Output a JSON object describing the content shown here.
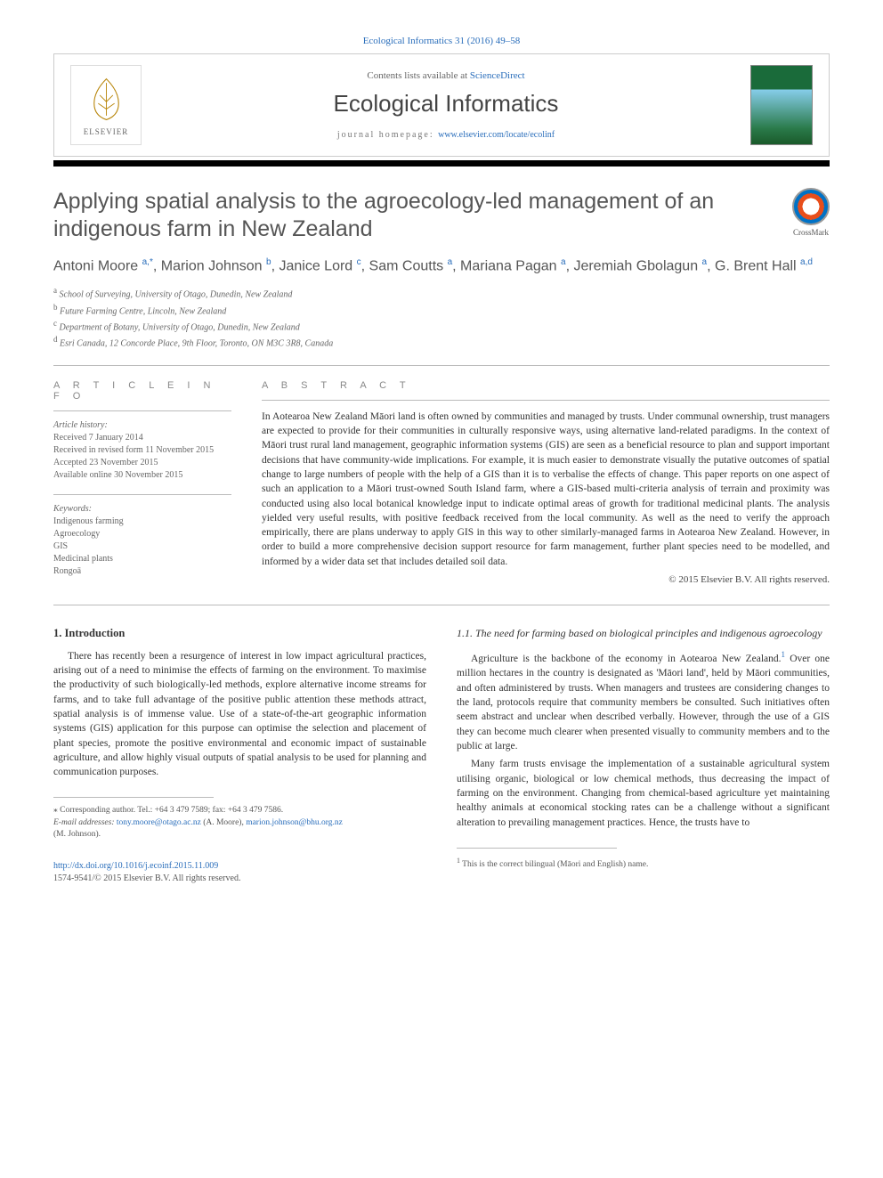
{
  "top_link": "Ecological Informatics 31 (2016) 49–58",
  "header": {
    "contents_prefix": "Contents lists available at ",
    "contents_link": "ScienceDirect",
    "journal_name": "Ecological Informatics",
    "homepage_label": "journal homepage: ",
    "homepage_url": "www.elsevier.com/locate/ecolinf",
    "publisher_name": "ELSEVIER"
  },
  "crossmark_label": "CrossMark",
  "title": "Applying spatial analysis to the agroecology-led management of an indigenous farm in New Zealand",
  "authors_html": [
    {
      "name": "Antoni Moore ",
      "sup": "a,*"
    },
    {
      "name": ", Marion Johnson ",
      "sup": "b"
    },
    {
      "name": ", Janice Lord ",
      "sup": "c"
    },
    {
      "name": ", Sam Coutts ",
      "sup": "a"
    },
    {
      "name": ", Mariana Pagan ",
      "sup": "a"
    },
    {
      "name": ", Jeremiah Gbolagun ",
      "sup": "a"
    },
    {
      "name": ", G. Brent Hall ",
      "sup": "a,d"
    }
  ],
  "affiliations": [
    {
      "sup": "a",
      "text": " School of Surveying, University of Otago, Dunedin, New Zealand"
    },
    {
      "sup": "b",
      "text": " Future Farming Centre, Lincoln, New Zealand"
    },
    {
      "sup": "c",
      "text": " Department of Botany, University of Otago, Dunedin, New Zealand"
    },
    {
      "sup": "d",
      "text": " Esri Canada, 12 Concorde Place, 9th Floor, Toronto, ON M3C 3R8, Canada"
    }
  ],
  "article_info": {
    "heading": "A R T I C L E   I N F O",
    "history_label": "Article history:",
    "history": [
      "Received 7 January 2014",
      "Received in revised form 11 November 2015",
      "Accepted 23 November 2015",
      "Available online 30 November 2015"
    ],
    "keywords_label": "Keywords:",
    "keywords": [
      "Indigenous farming",
      "Agroecology",
      "GIS",
      "Medicinal plants",
      "Rongoā"
    ]
  },
  "abstract": {
    "heading": "A B S T R A C T",
    "text": "In Aotearoa New Zealand Māori land is often owned by communities and managed by trusts. Under communal ownership, trust managers are expected to provide for their communities in culturally responsive ways, using alternative land-related paradigms. In the context of Māori trust rural land management, geographic information systems (GIS) are seen as a beneficial resource to plan and support important decisions that have community-wide implications. For example, it is much easier to demonstrate visually the putative outcomes of spatial change to large numbers of people with the help of a GIS than it is to verbalise the effects of change. This paper reports on one aspect of such an application to a Māori trust-owned South Island farm, where a GIS-based multi-criteria analysis of terrain and proximity was conducted using also local botanical knowledge input to indicate optimal areas of growth for traditional medicinal plants. The analysis yielded very useful results, with positive feedback received from the local community. As well as the need to verify the approach empirically, there are plans underway to apply GIS in this way to other similarly-managed farms in Aotearoa New Zealand. However, in order to build a more comprehensive decision support resource for farm management, further plant species need to be modelled, and informed by a wider data set that includes detailed soil data.",
    "copyright": "© 2015 Elsevier B.V. All rights reserved."
  },
  "section1": {
    "heading": "1. Introduction",
    "para1": "There has recently been a resurgence of interest in low impact agricultural practices, arising out of a need to minimise the effects of farming on the environment. To maximise the productivity of such biologically-led methods, explore alternative income streams for farms, and to take full advantage of the positive public attention these methods attract, spatial analysis is of immense value. Use of a state-of-the-art geographic information systems (GIS) application for this purpose can optimise the selection and placement of plant species, promote the positive environmental and economic impact of sustainable agriculture, and allow highly visual outputs of spatial analysis to be used for planning and communication purposes."
  },
  "section11": {
    "heading": "1.1. The need for farming based on biological principles and indigenous agroecology",
    "para1_pre": "Agriculture is the backbone of the economy in Aotearoa New Zealand.",
    "para1_post": " Over one million hectares in the country is designated as 'Māori land', held by Māori communities, and often administered by trusts. When managers and trustees are considering changes to the land, protocols require that community members be consulted. Such initiatives often seem abstract and unclear when described verbally. However, through the use of a GIS they can become much clearer when presented visually to community members and to the public at large.",
    "para2": "Many farm trusts envisage the implementation of a sustainable agricultural system utilising organic, biological or low chemical methods, thus decreasing the impact of farming on the environment. Changing from chemical-based agriculture yet maintaining healthy animals at economical stocking rates can be a challenge without a significant alteration to prevailing management practices. Hence, the trusts have to"
  },
  "corresponding": {
    "marker": "⁎",
    "tel_label": " Corresponding author. Tel.: +64 3 479 7589; fax: +64 3 479 7586.",
    "email_label": "E-mail addresses: ",
    "email1": "tony.moore@otago.ac.nz",
    "name1": " (A. Moore), ",
    "email2": "marion.johnson@bhu.org.nz",
    "name2": " (M. Johnson)."
  },
  "footnote1": {
    "sup": "1",
    "text": "  This is the correct bilingual (Māori and English) name."
  },
  "doi": {
    "url": "http://dx.doi.org/10.1016/j.ecoinf.2015.11.009",
    "issn_line": "1574-9541/© 2015 Elsevier B.V. All rights reserved."
  },
  "colors": {
    "link": "#2a6ebb",
    "heading": "#555555",
    "rule": "#bbbbbb",
    "black": "#000000"
  }
}
